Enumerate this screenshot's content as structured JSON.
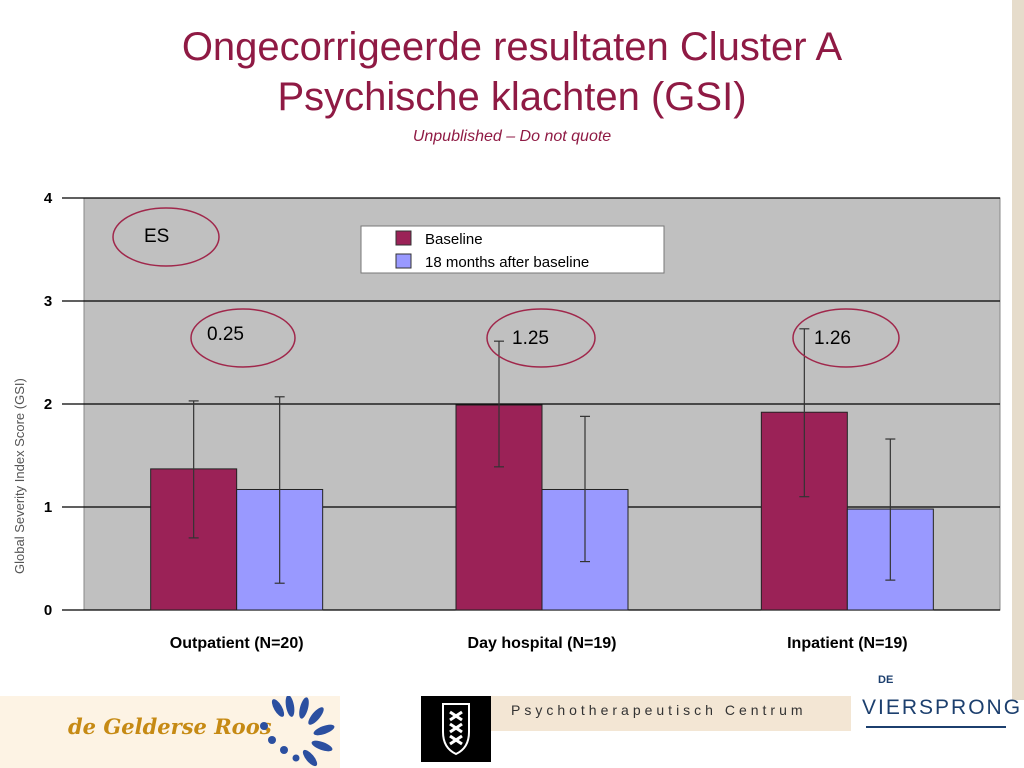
{
  "slide": {
    "title_line1": "Ongecorrigeerde resultaten Cluster A",
    "title_line2": "Psychische klachten (GSI)",
    "subtitle": "Unpublished – Do not quote"
  },
  "chart_data": {
    "type": "bar",
    "categories": [
      "Outpatient (N=20)",
      "Day hospital (N=19)",
      "Inpatient (N=19)"
    ],
    "ylabel": "Global Severity Index Score (GSI)",
    "ylim": [
      0,
      4
    ],
    "yticks": [
      "0",
      "1",
      "2",
      "3",
      "4"
    ],
    "grid": true,
    "legend_position": "top-center",
    "plot_background": "#c0c0c0",
    "series": [
      {
        "name": "Baseline",
        "color": "#9b2257",
        "values": [
          1.37,
          1.99,
          1.92
        ],
        "error_low": [
          0.7,
          1.39,
          1.1
        ],
        "error_high": [
          2.03,
          2.61,
          2.73
        ]
      },
      {
        "name": "18 months after baseline",
        "color": "#9999ff",
        "values": [
          1.17,
          1.17,
          0.98
        ],
        "error_low": [
          0.26,
          0.47,
          0.29
        ],
        "error_high": [
          2.07,
          1.88,
          1.66
        ]
      }
    ],
    "annotations": {
      "header": "ES",
      "effect_sizes": [
        "0.25",
        "1.25",
        "1.26"
      ]
    }
  },
  "footer": {
    "logo1_text": "de Gelderse Roos",
    "logo2_text": "Psychotherapeutisch Centrum",
    "logo3_de": "DE",
    "logo3_text": "VIERSPRONG"
  },
  "colors": {
    "title": "#8f1a44",
    "annotation_ellipse": "#a0274b"
  }
}
